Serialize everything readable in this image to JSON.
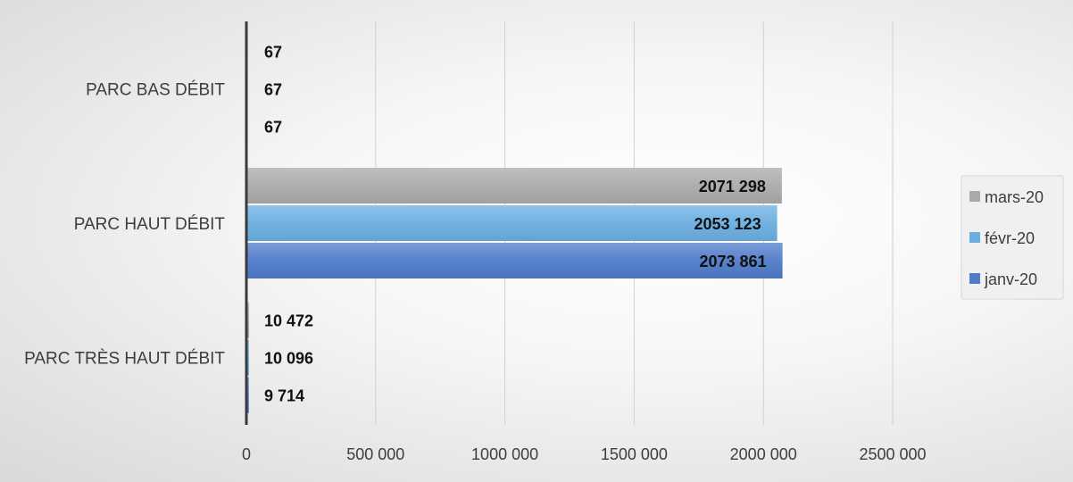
{
  "chart_data": {
    "type": "bar",
    "orientation": "horizontal",
    "categories": [
      "PARC BAS DÉBIT",
      "PARC HAUT DÉBIT",
      "PARC TRÈS HAUT DÉBIT"
    ],
    "series": [
      {
        "name": "mars-20",
        "color": "#aaaaaa",
        "values": [
          67,
          2071298,
          10472
        ],
        "labels": [
          "67",
          "2071 298",
          "10 472"
        ]
      },
      {
        "name": "févr-20",
        "color": "#6aaee0",
        "values": [
          67,
          2053123,
          10096
        ],
        "labels": [
          "67",
          "2053 123",
          "10 096"
        ]
      },
      {
        "name": "janv-20",
        "color": "#4f7bc9",
        "values": [
          67,
          2073861,
          9714
        ],
        "labels": [
          "67",
          "2073 861",
          "9 714"
        ]
      }
    ],
    "xlim": [
      0,
      2500000
    ],
    "ticks": [
      {
        "value": 0,
        "label": "0"
      },
      {
        "value": 500000,
        "label": "500 000"
      },
      {
        "value": 1000000,
        "label": "1000 000"
      },
      {
        "value": 1500000,
        "label": "1500 000"
      },
      {
        "value": 2000000,
        "label": "2000 000"
      },
      {
        "value": 2500000,
        "label": "2500 000"
      }
    ],
    "grid": true,
    "legend_position": "right",
    "title": "",
    "xlabel": "",
    "ylabel": ""
  }
}
